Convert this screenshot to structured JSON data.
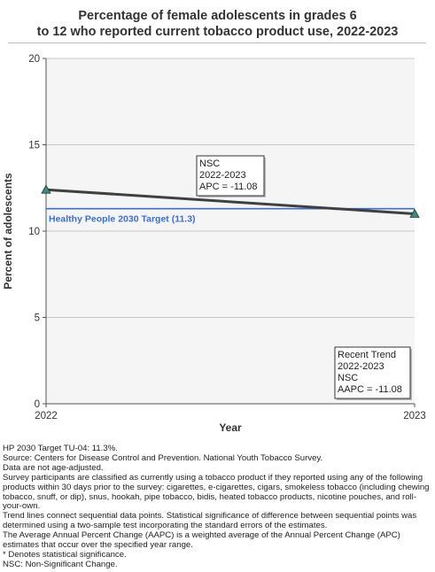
{
  "chart_data": {
    "type": "line",
    "title": "Percentage of female adolescents in grades 6 to 12 who reported current tobacco product use, 2022-2023",
    "title_lines": [
      "Percentage of female adolescents in grades 6",
      "to 12 who reported current tobacco product use, 2022-2023"
    ],
    "xlabel": "Year",
    "ylabel": "Percent of adolescents",
    "ylim": [
      0,
      20
    ],
    "y_ticks": [
      0,
      5,
      10,
      15,
      20
    ],
    "x_ticks": [
      "2022",
      "2023"
    ],
    "grid": "horizontal",
    "series": [
      {
        "x": [
          "2022",
          "2023"
        ],
        "values": [
          12.4,
          11.0
        ],
        "color": "#404040",
        "marker_color": "#3f8a7a"
      }
    ],
    "target": {
      "label": "Healthy People 2030 Target (11.3)",
      "value": 11.3,
      "color": "#3b6fd6"
    },
    "annotations": [
      {
        "lines": [
          "NSC",
          "2022-2023",
          "APC = -11.08"
        ]
      },
      {
        "lines": [
          "Recent Trend",
          "2022-2023",
          "NSC",
          "AAPC = -11.08"
        ]
      }
    ]
  },
  "footnotes": [
    "HP 2030 Target TU-04: 11.3%.",
    "Source: Centers for Disease Control and Prevention. National Youth Tobacco Survey.",
    "Data are not age-adjusted.",
    "Survey participants are classified as currently using a tobacco product if they reported using any of the following products within 30 days prior to the survey: cigarettes, e-cigarettes, cigars, smokeless tobacco (including chewing tobacco, snuff, or dip), snus, hookah, pipe tobacco, bidis, heated tobacco products, nicotine pouches, and roll-your-own.",
    "Trend lines connect sequential data points. Statistical significance of difference between sequential points was determined using a two-sample test incorporating the standard errors of the estimates.",
    "The Average Annual Percent Change (AAPC) is a weighted average of the Annual Percent Change (APC) estimates that occur over the specified year range.",
    "* Denotes statistical significance.",
    "NSC: Non-Significant Change."
  ]
}
